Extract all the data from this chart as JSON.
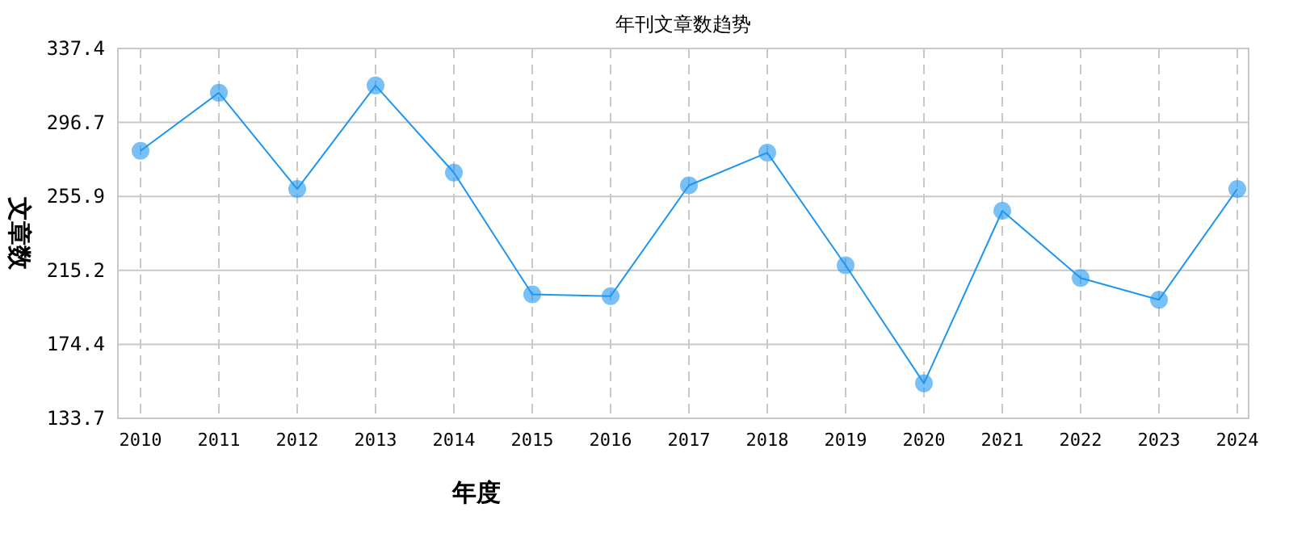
{
  "chart_data": {
    "type": "line",
    "title": "年刊文章数趋势",
    "xlabel": "年度",
    "ylabel": "文章数",
    "categories": [
      "2010",
      "2011",
      "2012",
      "2013",
      "2014",
      "2015",
      "2016",
      "2017",
      "2018",
      "2019",
      "2020",
      "2021",
      "2022",
      "2023",
      "2024"
    ],
    "series": [
      {
        "color": "#1e96f0",
        "values": [
          281,
          313,
          260,
          317,
          269,
          202,
          201,
          262,
          280,
          218,
          153,
          248,
          211,
          199,
          260
        ]
      }
    ],
    "ylim": [
      133.7,
      337.4
    ],
    "yticks": [
      133.7,
      174.4,
      215.2,
      255.9,
      296.7,
      337.4
    ],
    "grid": true,
    "marker": "circle",
    "line_style": "solid"
  }
}
